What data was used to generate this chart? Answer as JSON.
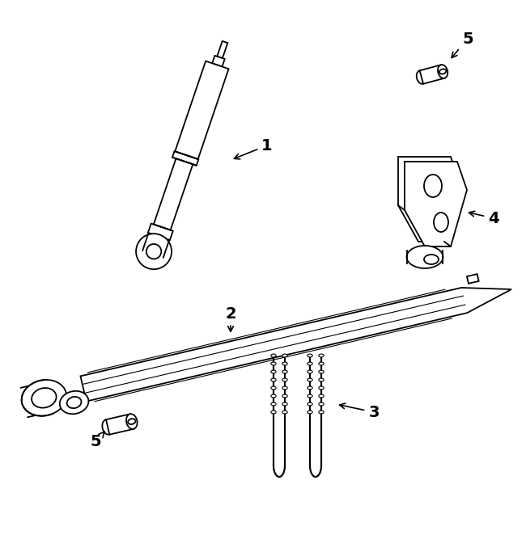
{
  "bg_color": "#ffffff",
  "line_color": "#000000",
  "figsize": [
    6.5,
    6.62
  ],
  "dpi": 100
}
